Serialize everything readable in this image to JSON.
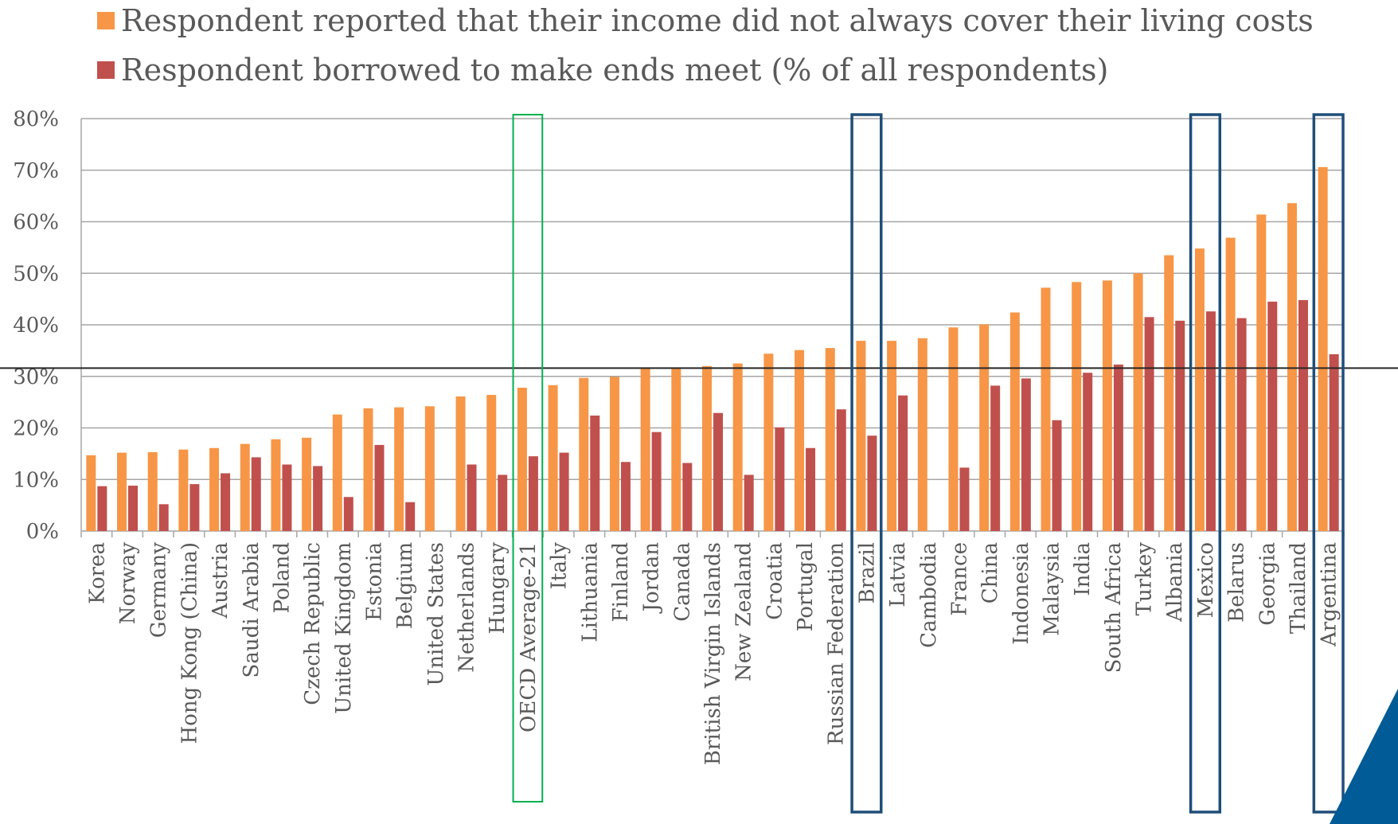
{
  "colors": {
    "income": "#F79646",
    "borrow": "#C0504D",
    "oecd_box": "#00B050",
    "highlight_box": "#1F4E79",
    "corner": "#005B96",
    "grid": "#A6A6A6",
    "refline": "#262626"
  },
  "chart_data": {
    "type": "bar",
    "title": "",
    "xlabel": "",
    "ylabel": "",
    "ylim": [
      0,
      80
    ],
    "yticks": [
      "0%",
      "10%",
      "20%",
      "30%",
      "40%",
      "50%",
      "60%",
      "70%",
      "80%"
    ],
    "grid": true,
    "legend_position": "top",
    "reference_line": 31.6,
    "categories": [
      "Korea",
      "Norway",
      "Germany",
      "Hong Kong (China)",
      "Austria",
      "Saudi Arabia",
      "Poland",
      "Czech Republic",
      "United Kingdom",
      "Estonia",
      "Belgium",
      "United States",
      "Netherlands",
      "Hungary",
      "OECD Average-21",
      "Italy",
      "Lithuania",
      "Finland",
      "Jordan",
      "Canada",
      "British Virgin Islands",
      "New Zealand",
      "Croatia",
      "Portugal",
      "Russian Federation",
      "Brazil",
      "Latvia",
      "Cambodia",
      "France",
      "China",
      "Indonesia",
      "Malaysia",
      "India",
      "South Africa",
      "Turkey",
      "Albania",
      "Mexico",
      "Belarus",
      "Georgia",
      "Thailand",
      "Argentina"
    ],
    "series": [
      {
        "name": "Respondent reported that their income did not always cover their living costs",
        "values": [
          14.7,
          15.2,
          15.3,
          15.8,
          16.1,
          16.9,
          17.8,
          18.1,
          22.6,
          23.8,
          24.0,
          24.2,
          26.1,
          26.4,
          27.8,
          28.3,
          29.7,
          29.9,
          31.7,
          31.6,
          32.0,
          32.5,
          34.4,
          35.1,
          35.5,
          36.9,
          36.9,
          37.4,
          39.5,
          40.1,
          42.4,
          47.2,
          48.3,
          48.6,
          50.0,
          53.5,
          54.8,
          56.9,
          61.4,
          63.6,
          70.6
        ]
      },
      {
        "name": "Respondent borrowed to make ends meet (% of all respondents)",
        "values": [
          8.7,
          8.8,
          5.2,
          9.1,
          11.2,
          14.3,
          12.9,
          12.6,
          6.6,
          16.7,
          5.6,
          null,
          12.9,
          10.9,
          14.5,
          15.2,
          22.4,
          13.4,
          19.2,
          13.2,
          22.9,
          10.9,
          20.1,
          16.1,
          23.6,
          18.5,
          26.3,
          null,
          12.3,
          28.2,
          29.6,
          21.5,
          30.7,
          32.3,
          41.5,
          40.8,
          42.6,
          41.3,
          44.5,
          44.8,
          34.3
        ]
      }
    ],
    "highlight_boxes": [
      {
        "category": "OECD Average-21",
        "style": "oecd"
      },
      {
        "category": "Brazil",
        "style": "country"
      },
      {
        "category": "Mexico",
        "style": "country"
      },
      {
        "category": "Argentina",
        "style": "country"
      }
    ]
  }
}
